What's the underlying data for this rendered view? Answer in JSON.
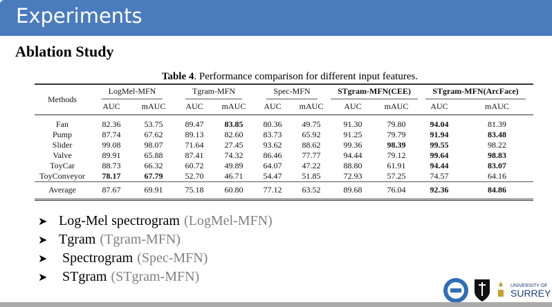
{
  "header": {
    "title": "Experiments"
  },
  "subtitle": "Ablation Study",
  "table": {
    "caption_label": "Table 4",
    "caption_text": ". Performance comparison for different input features.",
    "methods_header": "Methods",
    "groups": [
      "LogMel-MFN",
      "Tgram-MFN",
      "Spec-MFN",
      "STgram-MFN(CEE)",
      "STgram-MFN(ArcFace)"
    ],
    "subheaders": [
      "AUC",
      "mAUC",
      "AUC",
      "mAUC",
      "AUC",
      "mAUC",
      "AUC",
      "mAUC",
      "AUC",
      "mAUC"
    ],
    "rows": [
      {
        "method": "Fan",
        "values": [
          "82.36",
          "53.75",
          "89.47",
          "83.85",
          "80.36",
          "49.75",
          "91.30",
          "79.80",
          "94.04",
          "81.39"
        ],
        "bold": [
          3,
          8
        ]
      },
      {
        "method": "Pump",
        "values": [
          "87.74",
          "67.62",
          "89.13",
          "82.60",
          "83.73",
          "65.92",
          "91.25",
          "79.79",
          "91.94",
          "83.48"
        ],
        "bold": [
          8,
          9
        ]
      },
      {
        "method": "Slider",
        "values": [
          "99.08",
          "98.07",
          "71.64",
          "27.45",
          "93.62",
          "88.62",
          "99.36",
          "98.39",
          "99.55",
          "98.22"
        ],
        "bold": [
          7,
          8
        ]
      },
      {
        "method": "Valve",
        "values": [
          "89.91",
          "65.88",
          "87.41",
          "74.32",
          "86.46",
          "77.77",
          "94.44",
          "79.12",
          "99.64",
          "98.83"
        ],
        "bold": [
          8,
          9
        ]
      },
      {
        "method": "ToyCar",
        "values": [
          "88.73",
          "66.32",
          "60.72",
          "49.89",
          "64.07",
          "47.22",
          "88.80",
          "61.91",
          "94.44",
          "83.07"
        ],
        "bold": [
          8,
          9
        ]
      },
      {
        "method": "ToyConveyor",
        "values": [
          "78.17",
          "67.79",
          "52.70",
          "46.71",
          "54.47",
          "51.85",
          "72.93",
          "57.25",
          "74.57",
          "64.16"
        ],
        "bold": [
          0,
          1
        ]
      }
    ],
    "average": {
      "method": "Average",
      "values": [
        "87.67",
        "69.91",
        "75.18",
        "60.80",
        "77.12",
        "63.52",
        "89.68",
        "76.04",
        "92.36",
        "84.86"
      ],
      "bold": [
        8,
        9
      ]
    }
  },
  "bullets": [
    {
      "label": "Log-Mel spectrogram",
      "paren": "(LogMel-MFN)"
    },
    {
      "label": "Tgram",
      "paren": "(Tgram-MFN)"
    },
    {
      "label": " Spectrogram",
      "paren": "(Spec-MFN)"
    },
    {
      "label": " STgram",
      "paren": "(STgram-MFN)"
    }
  ],
  "logos": {
    "surrey_top": "UNIVERSITY OF",
    "surrey_bottom": "SURREY"
  },
  "colors": {
    "header": "#4a7cbd",
    "paren": "#808080",
    "surrey": "#c8a02a"
  }
}
